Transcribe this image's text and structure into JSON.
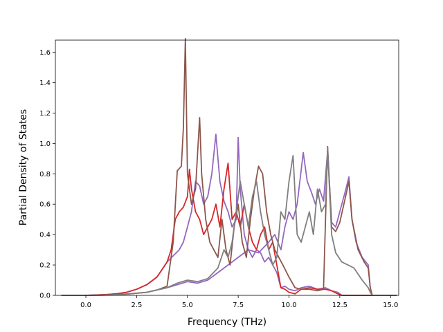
{
  "chart_data": {
    "type": "line",
    "title": "",
    "xlabel": "Frequency (THz)",
    "ylabel": "Partial Density of States",
    "xlim": [
      -1.5,
      15.4
    ],
    "ylim": [
      0,
      1.68
    ],
    "xticks": [
      0.0,
      2.5,
      5.0,
      7.5,
      10.0,
      12.5,
      15.0
    ],
    "xtick_labels": [
      "0.0",
      "2.5",
      "5.0",
      "7.5",
      "10.0",
      "12.5",
      "15.0"
    ],
    "yticks": [
      0.0,
      0.2,
      0.4,
      0.6,
      0.8,
      1.0,
      1.2,
      1.4,
      1.6
    ],
    "ytick_labels": [
      "0.0",
      "0.2",
      "0.4",
      "0.6",
      "0.8",
      "1.0",
      "1.2",
      "1.4",
      "1.6"
    ],
    "grid": false,
    "legend": "none",
    "series": [
      {
        "color": "#9467bd",
        "points": [
          [
            -1.2,
            0
          ],
          [
            0,
            0
          ],
          [
            1,
            0.005
          ],
          [
            1.5,
            0.01
          ],
          [
            2,
            0.02
          ],
          [
            2.5,
            0.04
          ],
          [
            3,
            0.07
          ],
          [
            3.5,
            0.12
          ],
          [
            3.8,
            0.18
          ],
          [
            4,
            0.22
          ],
          [
            4.3,
            0.26
          ],
          [
            4.6,
            0.3
          ],
          [
            4.8,
            0.35
          ],
          [
            5.0,
            0.45
          ],
          [
            5.2,
            0.55
          ],
          [
            5.4,
            0.75
          ],
          [
            5.6,
            0.72
          ],
          [
            5.8,
            0.6
          ],
          [
            6.0,
            0.65
          ],
          [
            6.2,
            0.8
          ],
          [
            6.4,
            1.06
          ],
          [
            6.6,
            0.75
          ],
          [
            6.8,
            0.62
          ],
          [
            7.0,
            0.55
          ],
          [
            7.2,
            0.45
          ],
          [
            7.4,
            0.5
          ],
          [
            7.5,
            1.04
          ],
          [
            7.6,
            0.7
          ],
          [
            7.8,
            0.4
          ],
          [
            8.0,
            0.3
          ],
          [
            8.2,
            0.25
          ],
          [
            8.4,
            0.3
          ],
          [
            8.6,
            0.28
          ],
          [
            8.8,
            0.22
          ],
          [
            9.0,
            0.25
          ],
          [
            9.2,
            0.2
          ],
          [
            9.4,
            0.15
          ],
          [
            9.6,
            0.05
          ],
          [
            9.8,
            0.06
          ],
          [
            10.0,
            0.04
          ],
          [
            10.3,
            0.03
          ],
          [
            10.6,
            0.05
          ],
          [
            11.0,
            0.06
          ],
          [
            11.4,
            0.04
          ],
          [
            11.8,
            0.05
          ],
          [
            12.1,
            0.03
          ],
          [
            12.4,
            0.02
          ],
          [
            12.6,
            0.0
          ],
          [
            13.0,
            0.0
          ],
          [
            15.3,
            0
          ]
        ]
      },
      {
        "color": "#9467bd",
        "points": [
          [
            -1.2,
            0
          ],
          [
            0,
            0
          ],
          [
            1,
            0.002
          ],
          [
            2,
            0.008
          ],
          [
            3,
            0.02
          ],
          [
            3.5,
            0.035
          ],
          [
            4,
            0.05
          ],
          [
            4.5,
            0.07
          ],
          [
            5.0,
            0.09
          ],
          [
            5.5,
            0.08
          ],
          [
            6.0,
            0.1
          ],
          [
            6.5,
            0.15
          ],
          [
            7.0,
            0.2
          ],
          [
            7.5,
            0.25
          ],
          [
            8.0,
            0.3
          ],
          [
            8.5,
            0.28
          ],
          [
            9.0,
            0.35
          ],
          [
            9.3,
            0.4
          ],
          [
            9.6,
            0.3
          ],
          [
            9.8,
            0.45
          ],
          [
            10.0,
            0.55
          ],
          [
            10.2,
            0.5
          ],
          [
            10.4,
            0.6
          ],
          [
            10.7,
            0.94
          ],
          [
            10.9,
            0.75
          ],
          [
            11.1,
            0.68
          ],
          [
            11.3,
            0.6
          ],
          [
            11.5,
            0.7
          ],
          [
            11.7,
            0.62
          ],
          [
            11.9,
            0.95
          ],
          [
            12.1,
            0.48
          ],
          [
            12.3,
            0.45
          ],
          [
            12.5,
            0.55
          ],
          [
            12.8,
            0.7
          ],
          [
            12.95,
            0.78
          ],
          [
            13.1,
            0.5
          ],
          [
            13.3,
            0.35
          ],
          [
            13.6,
            0.25
          ],
          [
            13.9,
            0.2
          ],
          [
            14.0,
            0.05
          ],
          [
            14.1,
            0.0
          ],
          [
            15.3,
            0
          ]
        ]
      },
      {
        "color": "#d62728",
        "points": [
          [
            -1.2,
            0
          ],
          [
            0,
            0
          ],
          [
            1,
            0.005
          ],
          [
            1.5,
            0.01
          ],
          [
            2,
            0.02
          ],
          [
            2.5,
            0.04
          ],
          [
            3,
            0.07
          ],
          [
            3.5,
            0.12
          ],
          [
            3.8,
            0.18
          ],
          [
            4,
            0.22
          ],
          [
            4.2,
            0.3
          ],
          [
            4.4,
            0.5
          ],
          [
            4.6,
            0.55
          ],
          [
            4.8,
            0.58
          ],
          [
            5.0,
            0.65
          ],
          [
            5.1,
            0.83
          ],
          [
            5.2,
            0.7
          ],
          [
            5.4,
            0.55
          ],
          [
            5.6,
            0.5
          ],
          [
            5.8,
            0.4
          ],
          [
            6.0,
            0.45
          ],
          [
            6.2,
            0.5
          ],
          [
            6.4,
            0.6
          ],
          [
            6.6,
            0.45
          ],
          [
            6.8,
            0.7
          ],
          [
            7.0,
            0.87
          ],
          [
            7.2,
            0.5
          ],
          [
            7.4,
            0.55
          ],
          [
            7.6,
            0.45
          ],
          [
            7.8,
            0.6
          ],
          [
            8.0,
            0.45
          ],
          [
            8.2,
            0.35
          ],
          [
            8.4,
            0.3
          ],
          [
            8.6,
            0.4
          ],
          [
            8.8,
            0.45
          ],
          [
            9.0,
            0.3
          ],
          [
            9.2,
            0.35
          ],
          [
            9.4,
            0.2
          ],
          [
            9.6,
            0.05
          ],
          [
            9.8,
            0.04
          ],
          [
            10.0,
            0.02
          ],
          [
            10.3,
            0.01
          ],
          [
            10.6,
            0.04
          ],
          [
            11.0,
            0.05
          ],
          [
            11.4,
            0.04
          ],
          [
            11.8,
            0.04
          ],
          [
            12.1,
            0.03
          ],
          [
            12.4,
            0.01
          ],
          [
            12.6,
            0.0
          ],
          [
            15.3,
            0
          ]
        ]
      },
      {
        "color": "#8c564b",
        "points": [
          [
            -1.2,
            0
          ],
          [
            0,
            0
          ],
          [
            1,
            0.002
          ],
          [
            2,
            0.008
          ],
          [
            3,
            0.02
          ],
          [
            3.5,
            0.035
          ],
          [
            4,
            0.06
          ],
          [
            4.3,
            0.35
          ],
          [
            4.5,
            0.82
          ],
          [
            4.7,
            0.85
          ],
          [
            4.8,
            1.1
          ],
          [
            4.9,
            1.69
          ],
          [
            5.0,
            0.8
          ],
          [
            5.2,
            0.6
          ],
          [
            5.4,
            0.7
          ],
          [
            5.6,
            1.17
          ],
          [
            5.7,
            0.8
          ],
          [
            5.9,
            0.5
          ],
          [
            6.1,
            0.35
          ],
          [
            6.3,
            0.3
          ],
          [
            6.5,
            0.25
          ],
          [
            6.7,
            0.5
          ],
          [
            6.9,
            0.3
          ],
          [
            7.1,
            0.2
          ],
          [
            7.3,
            0.45
          ],
          [
            7.5,
            0.6
          ],
          [
            7.7,
            0.35
          ],
          [
            7.9,
            0.25
          ],
          [
            8.1,
            0.5
          ],
          [
            8.3,
            0.7
          ],
          [
            8.5,
            0.85
          ],
          [
            8.7,
            0.8
          ],
          [
            8.9,
            0.55
          ],
          [
            9.1,
            0.4
          ],
          [
            9.3,
            0.3
          ],
          [
            9.5,
            0.25
          ],
          [
            9.7,
            0.2
          ],
          [
            10.0,
            0.12
          ],
          [
            10.3,
            0.05
          ],
          [
            10.6,
            0.04
          ],
          [
            11.0,
            0.04
          ],
          [
            11.4,
            0.03
          ],
          [
            11.7,
            0.04
          ],
          [
            11.9,
            0.98
          ],
          [
            12.1,
            0.45
          ],
          [
            12.3,
            0.42
          ],
          [
            12.5,
            0.48
          ],
          [
            12.7,
            0.6
          ],
          [
            12.95,
            0.75
          ],
          [
            13.1,
            0.5
          ],
          [
            13.4,
            0.3
          ],
          [
            13.7,
            0.22
          ],
          [
            13.9,
            0.18
          ],
          [
            14.0,
            0.05
          ],
          [
            14.1,
            0.0
          ],
          [
            15.3,
            0
          ]
        ]
      },
      {
        "color": "#7f7f7f",
        "points": [
          [
            -1.2,
            0
          ],
          [
            0,
            0
          ],
          [
            1,
            0.002
          ],
          [
            2,
            0.008
          ],
          [
            3,
            0.02
          ],
          [
            3.5,
            0.035
          ],
          [
            4,
            0.05
          ],
          [
            4.5,
            0.08
          ],
          [
            5.0,
            0.1
          ],
          [
            5.5,
            0.09
          ],
          [
            6.0,
            0.11
          ],
          [
            6.5,
            0.18
          ],
          [
            6.8,
            0.3
          ],
          [
            7.0,
            0.25
          ],
          [
            7.2,
            0.35
          ],
          [
            7.4,
            0.55
          ],
          [
            7.6,
            0.75
          ],
          [
            7.8,
            0.6
          ],
          [
            8.0,
            0.45
          ],
          [
            8.2,
            0.65
          ],
          [
            8.4,
            0.75
          ],
          [
            8.6,
            0.55
          ],
          [
            8.8,
            0.4
          ],
          [
            9.0,
            0.3
          ],
          [
            9.2,
            0.2
          ],
          [
            9.4,
            0.25
          ],
          [
            9.6,
            0.55
          ],
          [
            9.8,
            0.5
          ],
          [
            10.0,
            0.75
          ],
          [
            10.2,
            0.92
          ],
          [
            10.4,
            0.4
          ],
          [
            10.6,
            0.35
          ],
          [
            10.8,
            0.45
          ],
          [
            11.0,
            0.55
          ],
          [
            11.2,
            0.4
          ],
          [
            11.4,
            0.7
          ],
          [
            11.6,
            0.55
          ],
          [
            11.8,
            0.6
          ],
          [
            11.9,
            0.97
          ],
          [
            12.1,
            0.4
          ],
          [
            12.3,
            0.28
          ],
          [
            12.6,
            0.22
          ],
          [
            12.9,
            0.2
          ],
          [
            13.2,
            0.18
          ],
          [
            13.6,
            0.1
          ],
          [
            13.9,
            0.05
          ],
          [
            14.0,
            0.02
          ],
          [
            14.1,
            0.0
          ],
          [
            15.3,
            0
          ]
        ]
      }
    ]
  }
}
